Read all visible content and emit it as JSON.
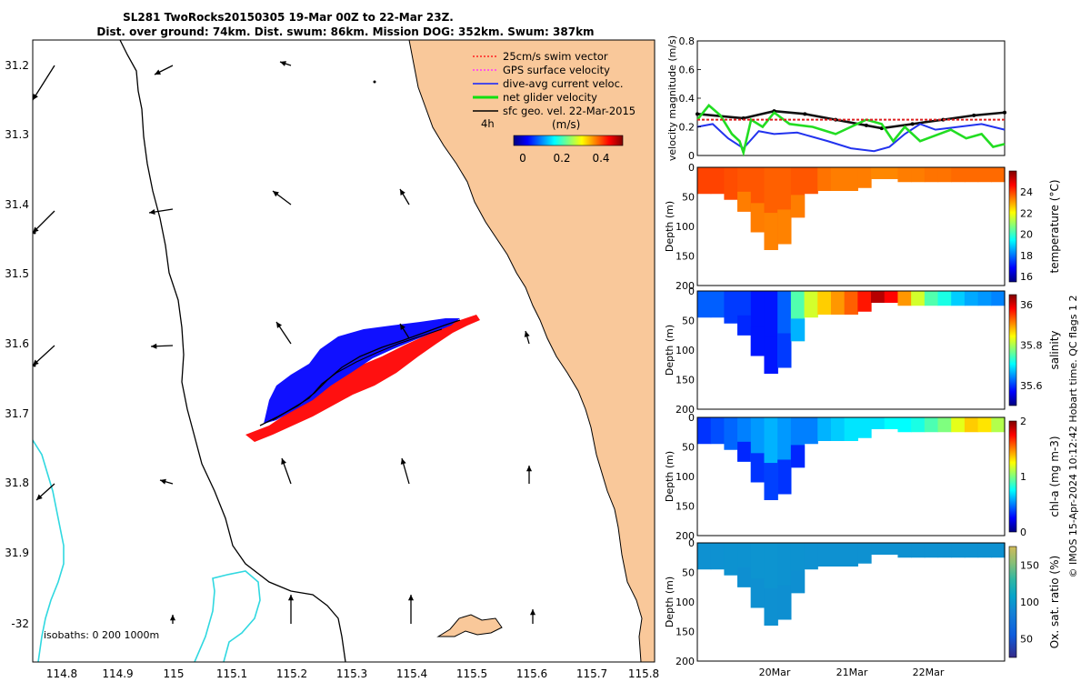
{
  "header": {
    "line1": "SL281 TwoRocks20150305 19-Mar 00Z to 22-Mar 23Z.",
    "line2": "Dist. over ground: 74km. Dist. swum: 86km. Mission DOG: 352km. Swum: 387km"
  },
  "colors": {
    "land": "#f9c89a",
    "coast": "#000000",
    "isobath": "#30d8e0",
    "glider_red": "#ff1010",
    "glider_blue": "#1010ff",
    "series_black": "#111111",
    "series_blue": "#2233ee",
    "series_green": "#22dd22",
    "series_red": "#dd2020"
  },
  "map": {
    "x_ticks": [
      "114.8",
      "114.9",
      "115",
      "115.1",
      "115.2",
      "115.3",
      "115.4",
      "115.5",
      "115.6",
      "115.7",
      "115.8"
    ],
    "y_ticks": [
      "31.2",
      "31.3",
      "31.4",
      "31.5",
      "31.6",
      "31.7",
      "31.8",
      "31.9",
      "-32"
    ],
    "legend": [
      {
        "label": "25cm/s swim vector",
        "color": "#ff2020",
        "style": "dotted"
      },
      {
        "label": "GPS surface velocity",
        "color": "#ff33ff",
        "style": "dotted"
      },
      {
        "label": "dive-avg current veloc.",
        "color": "#1020ff",
        "style": "solid"
      },
      {
        "label": "net glider velocity",
        "color": "#10e010",
        "style": "solid"
      },
      {
        "label": "sfc geo. vel. 22-Mar-2015",
        "color": "#000000",
        "style": "solid"
      }
    ],
    "time_scale_label": "4h",
    "colorbar_label": "(m/s)",
    "colorbar_ticks": [
      "0",
      "0.2",
      "0.4"
    ],
    "isobaths_label": "isobaths: 0   200  1000m"
  },
  "chart_data": [
    {
      "type": "line",
      "title": "",
      "ylabel": "velocity magnitude (m/s)",
      "xlabel": "",
      "x_ticks": [
        "20Mar",
        "21Mar",
        "22Mar"
      ],
      "ylim": [
        0,
        0.8
      ],
      "y_ticks": [
        "0",
        "0.2",
        "0.4",
        "0.6",
        "0.8"
      ],
      "series": [
        {
          "name": "sfc geo. vel.",
          "color": "#111111",
          "x": [
            19.0,
            19.6,
            20.0,
            20.4,
            20.8,
            21.2,
            21.4,
            21.8,
            22.2,
            22.6,
            23.0
          ],
          "values": [
            0.29,
            0.26,
            0.31,
            0.29,
            0.25,
            0.21,
            0.19,
            0.22,
            0.25,
            0.28,
            0.3
          ]
        },
        {
          "name": "dive-avg current veloc.",
          "color": "#2233ee",
          "x": [
            19.0,
            19.2,
            19.4,
            19.6,
            19.8,
            20.0,
            20.3,
            20.7,
            21.0,
            21.3,
            21.5,
            21.7,
            21.9,
            22.1,
            22.4,
            22.7,
            23.0
          ],
          "values": [
            0.2,
            0.22,
            0.12,
            0.05,
            0.17,
            0.15,
            0.16,
            0.1,
            0.05,
            0.03,
            0.06,
            0.15,
            0.22,
            0.18,
            0.2,
            0.22,
            0.18
          ]
        },
        {
          "name": "net glider velocity",
          "color": "#22dd22",
          "x": [
            19.0,
            19.15,
            19.3,
            19.45,
            19.55,
            19.6,
            19.7,
            19.85,
            20.0,
            20.2,
            20.5,
            20.8,
            21.0,
            21.2,
            21.4,
            21.55,
            21.7,
            21.9,
            22.1,
            22.3,
            22.5,
            22.7,
            22.85,
            23.0
          ],
          "values": [
            0.25,
            0.35,
            0.28,
            0.15,
            0.1,
            0.02,
            0.25,
            0.2,
            0.3,
            0.22,
            0.2,
            0.15,
            0.2,
            0.25,
            0.22,
            0.1,
            0.2,
            0.1,
            0.14,
            0.18,
            0.12,
            0.15,
            0.06,
            0.08
          ]
        },
        {
          "name": "swim vector",
          "color": "#dd2020",
          "x": [
            19.0,
            23.0
          ],
          "values": [
            0.25,
            0.25
          ]
        }
      ]
    },
    {
      "type": "heatmap",
      "quantity": "temperature",
      "ylabel": "Depth (m)",
      "colorbar_label": "temperature (°C)",
      "ylim": [
        0,
        200
      ],
      "y_ticks": [
        "0",
        "50",
        "100",
        "150",
        "200"
      ],
      "colorbar_ticks": [
        "16",
        "18",
        "20",
        "22",
        "24"
      ],
      "colorbar_range": [
        15.5,
        26
      ],
      "profile_depths_m": [
        45,
        45,
        55,
        75,
        110,
        140,
        130,
        85,
        45,
        40,
        40,
        40,
        35,
        20,
        20,
        25,
        25,
        25,
        25,
        25,
        25,
        25,
        25
      ],
      "column_values": [
        24.0,
        24.0,
        23.9,
        23.8,
        23.8,
        23.7,
        23.7,
        23.8,
        23.8,
        23.5,
        23.4,
        23.4,
        23.4,
        23.3,
        23.3,
        23.4,
        23.4,
        23.5,
        23.5,
        23.6,
        23.6,
        23.6,
        23.6
      ],
      "deep_value": 23.0
    },
    {
      "type": "heatmap",
      "quantity": "salinity",
      "ylabel": "Depth (m)",
      "colorbar_label": "salinity",
      "ylim": [
        0,
        200
      ],
      "y_ticks": [
        "0",
        "50",
        "100",
        "150",
        "200"
      ],
      "colorbar_ticks": [
        "35.6",
        "35.8",
        "36"
      ],
      "colorbar_range": [
        35.5,
        36.05
      ],
      "profile_depths_m": [
        45,
        45,
        55,
        75,
        110,
        140,
        130,
        85,
        45,
        40,
        40,
        40,
        35,
        20,
        20,
        25,
        25,
        25,
        25,
        25,
        25,
        25,
        25
      ],
      "column_values": [
        35.62,
        35.62,
        35.6,
        35.6,
        35.58,
        35.58,
        35.62,
        35.75,
        35.82,
        35.87,
        35.9,
        35.93,
        35.97,
        36.02,
        35.98,
        35.9,
        35.82,
        35.75,
        35.72,
        35.68,
        35.66,
        35.65,
        35.64
      ],
      "deep_value": 35.58
    },
    {
      "type": "heatmap",
      "quantity": "chl-a",
      "ylabel": "Depth (m)",
      "colorbar_label": "chl-a (mg m-3)",
      "ylim": [
        0,
        200
      ],
      "y_ticks": [
        "0",
        "50",
        "100",
        "150",
        "200"
      ],
      "colorbar_ticks": [
        "0",
        "1",
        "2"
      ],
      "colorbar_range": [
        0,
        2
      ],
      "profile_depths_m": [
        45,
        45,
        55,
        75,
        110,
        140,
        130,
        85,
        45,
        40,
        40,
        40,
        35,
        20,
        20,
        25,
        25,
        25,
        25,
        25,
        25,
        25,
        25
      ],
      "column_values": [
        0.35,
        0.4,
        0.45,
        0.5,
        0.55,
        0.6,
        0.55,
        0.5,
        0.5,
        0.6,
        0.65,
        0.7,
        0.7,
        0.7,
        0.75,
        0.75,
        0.8,
        0.9,
        1.0,
        1.2,
        1.35,
        1.3,
        1.1
      ],
      "deep_value": 0.15
    },
    {
      "type": "heatmap",
      "quantity": "oxygen saturation",
      "ylabel": "Depth (m)",
      "colorbar_label": "Ox. sat. ratio (%)",
      "ylim": [
        0,
        200
      ],
      "y_ticks": [
        "0",
        "50",
        "100",
        "150",
        "200"
      ],
      "colorbar_ticks": [
        "50",
        "100",
        "150"
      ],
      "colorbar_range": [
        25,
        175
      ],
      "profile_depths_m": [
        45,
        45,
        55,
        75,
        110,
        140,
        130,
        85,
        45,
        40,
        40,
        40,
        35,
        20,
        20,
        25,
        25,
        25,
        25,
        25,
        25,
        25,
        25
      ],
      "column_values": [
        95,
        95,
        96,
        96,
        97,
        97,
        96,
        96,
        95,
        95,
        95,
        95,
        95,
        95,
        95,
        95,
        95,
        95,
        95,
        95,
        95,
        95,
        95
      ],
      "deep_value": 92
    }
  ],
  "footer": {
    "credit": "© IMOS 15-Apr-2024 10:12:42 Hobart time. QC flags 1  2"
  }
}
